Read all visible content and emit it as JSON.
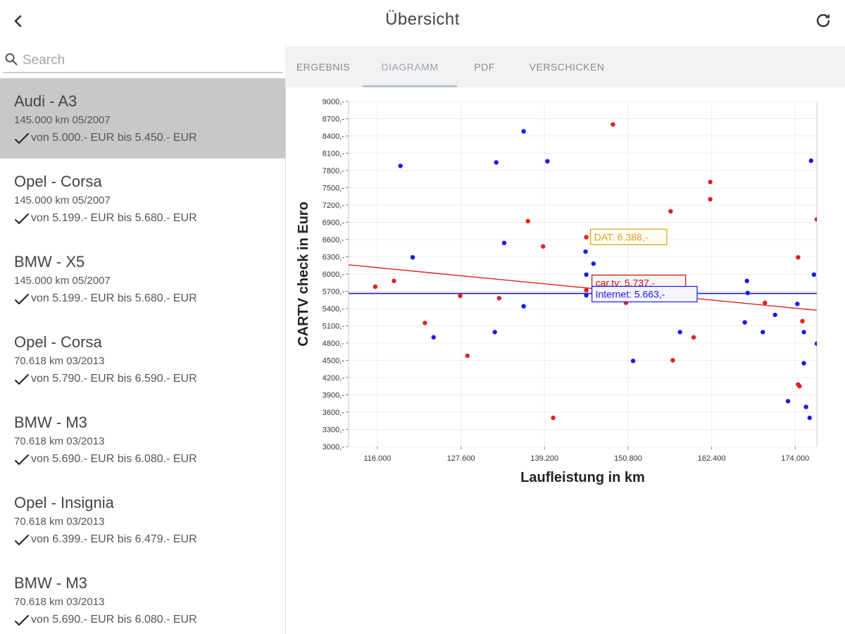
{
  "header": {
    "title": "Übersicht",
    "back_icon": "chevron-left-icon",
    "refresh_icon": "refresh-icon"
  },
  "search": {
    "placeholder": "Search",
    "icon": "search-icon"
  },
  "cars": [
    {
      "title": "Audi - A3",
      "sub": "145.000 km 05/2007",
      "price": "von 5.000.- EUR bis 5.450.- EUR",
      "selected": true
    },
    {
      "title": "Opel - Corsa",
      "sub": "145.000 km 05/2007",
      "price": "von 5.199.- EUR bis 5.680.- EUR",
      "selected": false
    },
    {
      "title": "BMW - X5",
      "sub": "145.000 km 05/2007",
      "price": "von 5.199.- EUR bis 5.680.- EUR",
      "selected": false
    },
    {
      "title": "Opel - Corsa",
      "sub": "70.618 km 03/2013",
      "price": "von 5.790.- EUR bis 6.590.- EUR",
      "selected": false
    },
    {
      "title": "BMW - M3",
      "sub": "70.618 km 03/2013",
      "price": "von 5.690.- EUR bis 6.080.- EUR",
      "selected": false
    },
    {
      "title": "Opel - Insignia",
      "sub": "70.618 km 03/2013",
      "price": "von 6.399.- EUR bis 6.479.- EUR",
      "selected": false
    },
    {
      "title": "BMW - M3",
      "sub": "70.618 km 03/2013",
      "price": "von 5.690.- EUR bis 6.080.- EUR",
      "selected": false
    }
  ],
  "tabs": [
    {
      "label": "ERGEBNIS",
      "active": false
    },
    {
      "label": "DIAGRAMM",
      "active": true
    },
    {
      "label": "PDF",
      "active": false
    },
    {
      "label": "VERSCHICKEN",
      "active": false
    }
  ],
  "colors": {
    "red_series": "#e02020",
    "blue_series": "#1a1ae6",
    "dat_label": "#d9a020",
    "selected_row": "#c8c8c8"
  },
  "chart_data": {
    "type": "scatter",
    "xlabel": "Laufleistung in km",
    "ylabel": "CARTV check in Euro",
    "xlim": [
      112000,
      177000
    ],
    "ylim": [
      3000,
      9000
    ],
    "x_ticks": [
      116000,
      127600,
      139200,
      150800,
      162400,
      174000
    ],
    "x_tick_labels": [
      "116.000",
      "127.600",
      "139.200",
      "150.800",
      "162.400",
      "174.000"
    ],
    "y_ticks": [
      3000,
      3300,
      3600,
      3900,
      4200,
      4500,
      4800,
      5100,
      5400,
      5700,
      6000,
      6300,
      6600,
      6900,
      7200,
      7500,
      7800,
      8100,
      8400,
      8700,
      9000
    ],
    "y_tick_labels": [
      "3000,-",
      "3300,-",
      "3600,-",
      "3900,-",
      "4200,-",
      "4500,-",
      "4800,-",
      "5100,-",
      "5400,-",
      "5700,-",
      "6000,-",
      "6300,-",
      "6600,-",
      "6900,-",
      "7200,-",
      "7500,-",
      "7800,-",
      "8100,-",
      "8400,-",
      "8700,-",
      "9000,-"
    ],
    "grid": true,
    "series": [
      {
        "name": "red",
        "color": "#e02020",
        "points": [
          [
            115700,
            5780
          ],
          [
            118300,
            5880
          ],
          [
            122600,
            5150
          ],
          [
            127500,
            5620
          ],
          [
            128500,
            4580
          ],
          [
            132900,
            5580
          ],
          [
            136900,
            6920
          ],
          [
            139000,
            6480
          ],
          [
            140400,
            3500
          ],
          [
            145000,
            6640
          ],
          [
            145000,
            5720
          ],
          [
            148700,
            8600
          ],
          [
            150500,
            5500
          ],
          [
            156700,
            7090
          ],
          [
            157000,
            4500
          ],
          [
            159900,
            4900
          ],
          [
            162200,
            7300
          ],
          [
            162200,
            7600
          ],
          [
            169800,
            5500
          ],
          [
            174400,
            6290
          ],
          [
            174400,
            4080
          ],
          [
            174600,
            4050
          ],
          [
            175000,
            5180
          ],
          [
            177000,
            6950
          ]
        ]
      },
      {
        "name": "blue",
        "color": "#1a1ae6",
        "points": [
          [
            119200,
            7880
          ],
          [
            120900,
            6290
          ],
          [
            123800,
            4900
          ],
          [
            132500,
            7940
          ],
          [
            132300,
            4990
          ],
          [
            133600,
            6540
          ],
          [
            136300,
            8480
          ],
          [
            136300,
            5440
          ],
          [
            139600,
            7960
          ],
          [
            144900,
            6390
          ],
          [
            145000,
            5990
          ],
          [
            145000,
            5630
          ],
          [
            146000,
            6180
          ],
          [
            151500,
            4490
          ],
          [
            158000,
            4990
          ],
          [
            167000,
            5160
          ],
          [
            167300,
            5880
          ],
          [
            167400,
            5670
          ],
          [
            169500,
            4990
          ],
          [
            171200,
            5290
          ],
          [
            173000,
            3790
          ],
          [
            174300,
            5480
          ],
          [
            175200,
            4990
          ],
          [
            175200,
            4450
          ],
          [
            175500,
            3690
          ],
          [
            176000,
            3500
          ],
          [
            176200,
            7970
          ],
          [
            176600,
            5990
          ],
          [
            177000,
            4790
          ]
        ]
      }
    ],
    "red_trend": {
      "from": [
        112000,
        6160
      ],
      "to": [
        177000,
        5370
      ]
    },
    "blue_trend": {
      "from": [
        112000,
        5663
      ],
      "to": [
        177000,
        5663
      ]
    },
    "annotations": [
      {
        "text": "DAT: 6.388,-",
        "x": 145000,
        "y": 6388,
        "color": "#d9a020",
        "bg": "#fffdf2"
      },
      {
        "text": "car.tv: 5.737,-",
        "x": 145000,
        "y": 5737,
        "color": "#cc1010",
        "bg": "#fff5f5"
      },
      {
        "text": "Internet: 5.663,-",
        "x": 145000,
        "y": 5663,
        "color": "#1a1ae6",
        "bg": "#f5f5ff"
      }
    ]
  }
}
